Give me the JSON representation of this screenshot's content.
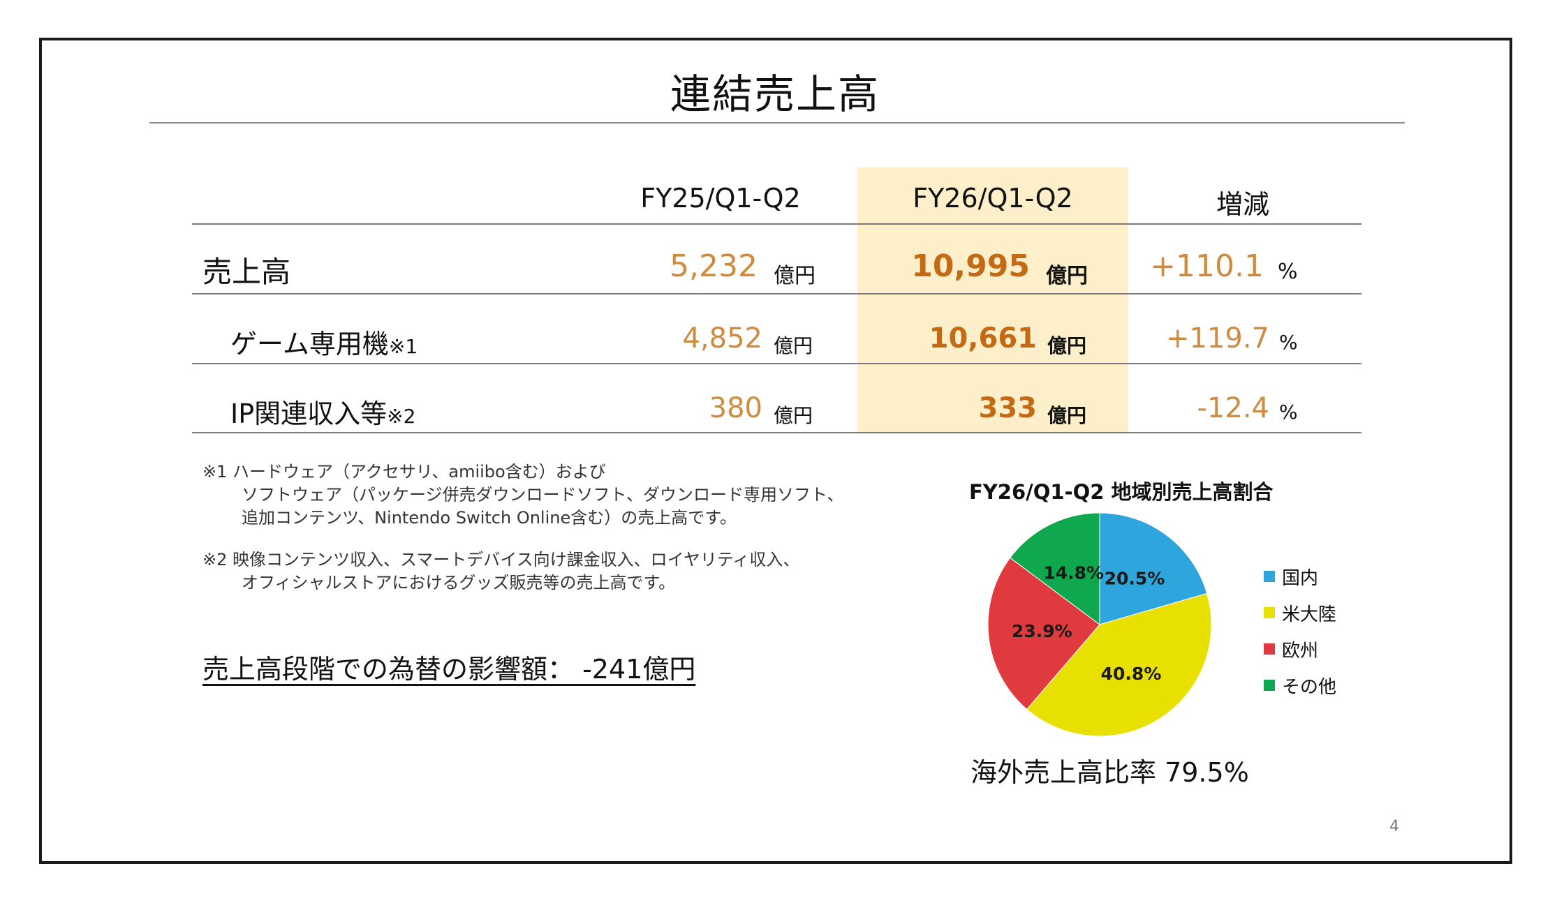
{
  "title": "連結売上高",
  "table": {
    "headers": [
      "FY25/Q1-Q2",
      "FY26/Q1-Q2",
      "増減"
    ],
    "rows": [
      {
        "label": "売上高",
        "note": "",
        "prev": "5,232",
        "prev_unit": "億円",
        "cur": "10,995",
        "cur_unit": "億円",
        "change": "+110.1",
        "change_unit": "%"
      },
      {
        "label": "ゲーム専用機",
        "note": "※1",
        "prev": "4,852",
        "prev_unit": "億円",
        "cur": "10,661",
        "cur_unit": "億円",
        "change": "+119.7",
        "change_unit": "%"
      },
      {
        "label": "IP関連収入等",
        "note": "※2",
        "prev": "380",
        "prev_unit": "億円",
        "cur": "333",
        "cur_unit": "億円",
        "change": "-12.4",
        "change_unit": "%"
      }
    ]
  },
  "footnotes": {
    "n1": [
      "※1 ハードウェア（アクセサリ、amiibo含む）および",
      "ソフトウェア（パッケージ併売ダウンロードソフト、ダウンロード専用ソフト、",
      "追加コンテンツ、Nintendo Switch Online含む）の売上高です。"
    ],
    "n2": [
      "※2 映像コンテンツ収入、スマートデバイス向け課金収入、ロイヤリティ収入、",
      "オフィシャルストアにおけるグッズ販売等の売上高です。"
    ]
  },
  "fx_impact": "売上高段階での為替の影響額：  -241億円",
  "chart_data": {
    "type": "pie",
    "title": "FY26/Q1-Q2 地域別売上高割合",
    "categories": [
      "国内",
      "米大陸",
      "欧州",
      "その他"
    ],
    "values": [
      20.5,
      40.8,
      23.9,
      14.8
    ],
    "labels": [
      "20.5%",
      "40.8%",
      "23.9%",
      "14.8%"
    ],
    "colors": [
      "#2ea6dd",
      "#e8e000",
      "#e03a3e",
      "#10a84f"
    ],
    "legend": "right",
    "start": "top, clockwise"
  },
  "overseas_ratio": "海外売上高比率 79.5%",
  "page_number": "4"
}
